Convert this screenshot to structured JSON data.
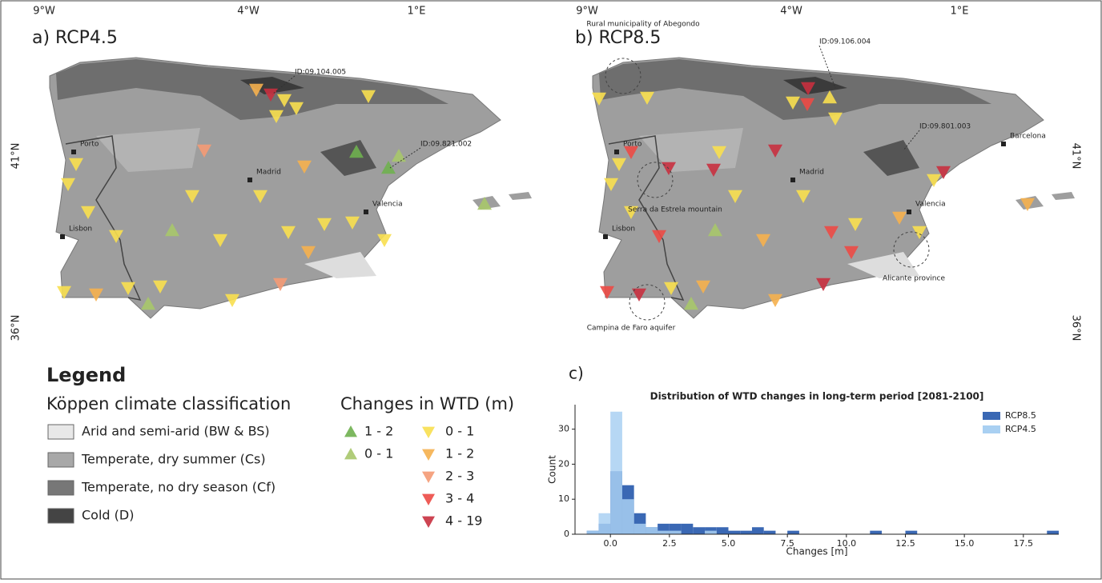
{
  "panels": [
    {
      "title": "a) RCP4.5",
      "lon_labels": [
        "9°W",
        "4°W",
        "1°E"
      ],
      "lat_labels": [
        "41°N",
        "36°N"
      ],
      "places": [
        "Porto",
        "Madrid",
        "Valencia",
        "Lisbon"
      ],
      "ids": [
        "ID:09.104.005",
        "ID:09.821.002"
      ],
      "areas": []
    },
    {
      "title": "b) RCP8.5",
      "lon_labels": [
        "9°W",
        "4°W",
        "1°E"
      ],
      "lat_labels": [
        "41°N",
        "36°N"
      ],
      "places": [
        "Porto",
        "Madrid",
        "Valencia",
        "Lisbon",
        "Barcelona"
      ],
      "ids": [
        "ID:09.106.004",
        "ID:09.801.003"
      ],
      "areas": [
        "Rural municipality of Abegondo",
        "Serra da Estrela mountain",
        "Alicante province",
        "Campina de Faro aquifer"
      ]
    }
  ],
  "legend": {
    "title": "Legend",
    "climate_title": "Köppen climate classification",
    "climate_classes": [
      "Arid and semi-arid (BW & BS)",
      "Temperate, dry summer (Cs)",
      "Temperate, no dry season (Cf)",
      "Cold (D)"
    ],
    "wtd_title": "Changes in WTD (m)",
    "increase": [
      "1 - 2",
      "0 - 1"
    ],
    "decrease": [
      "0 - 1",
      "1 - 2",
      "2 - 3",
      "3 - 4",
      "4 - 19"
    ]
  },
  "chart_data": {
    "type": "histogram",
    "label": "c)",
    "title": "Distribution of WTD changes in long-term period [2081-2100]",
    "xlabel": "Changes [m]",
    "ylabel": "Count",
    "bins": [
      -1.0,
      -0.5,
      0.0,
      0.5,
      1.0,
      1.5,
      2.0,
      2.5,
      3.0,
      3.5,
      4.0,
      4.5,
      5.0,
      5.5,
      6.0,
      6.5,
      7.0,
      7.5,
      8.0,
      8.5,
      9.0,
      9.5,
      10.0,
      10.5,
      11.0,
      11.5,
      12.0,
      12.5,
      13.0,
      13.5,
      14.0,
      14.5,
      15.0,
      15.5,
      16.0,
      16.5,
      17.0,
      17.5,
      18.0,
      18.5,
      19.0
    ],
    "series": [
      {
        "name": "RCP8.5",
        "color": "#3a68b4",
        "values": [
          1,
          3,
          18,
          14,
          6,
          2,
          3,
          3,
          3,
          2,
          2,
          2,
          1,
          1,
          2,
          1,
          0,
          1,
          0,
          0,
          0,
          0,
          0,
          0,
          1,
          0,
          0,
          1,
          0,
          0,
          0,
          0,
          0,
          0,
          0,
          0,
          0,
          0,
          0,
          1
        ]
      },
      {
        "name": "RCP4.5",
        "color": "#a9d0f2",
        "values": [
          1,
          6,
          35,
          10,
          3,
          2,
          1,
          1,
          0,
          0,
          1,
          0,
          0,
          0,
          0,
          0,
          0,
          0,
          0,
          0,
          0,
          0,
          0,
          0,
          0,
          0,
          0,
          0,
          0,
          0,
          0,
          0,
          0,
          0,
          0,
          0,
          0,
          0,
          0,
          0
        ]
      }
    ],
    "xlim": [
      -1.5,
      19.0
    ],
    "ylim": [
      0,
      37
    ],
    "xticks": [
      {
        "value": 0,
        "label": "0.0"
      },
      {
        "value": 2.5,
        "label": "2.5"
      },
      {
        "value": 5,
        "label": "5.0"
      },
      {
        "value": 7.5,
        "label": "7.5"
      },
      {
        "value": 10,
        "label": "10.0"
      },
      {
        "value": 12.5,
        "label": "12.5"
      },
      {
        "value": 15,
        "label": "15.0"
      },
      {
        "value": 17.5,
        "label": "17.5"
      }
    ],
    "yticks": [
      0,
      10,
      20,
      30
    ],
    "legend": "upper right"
  }
}
